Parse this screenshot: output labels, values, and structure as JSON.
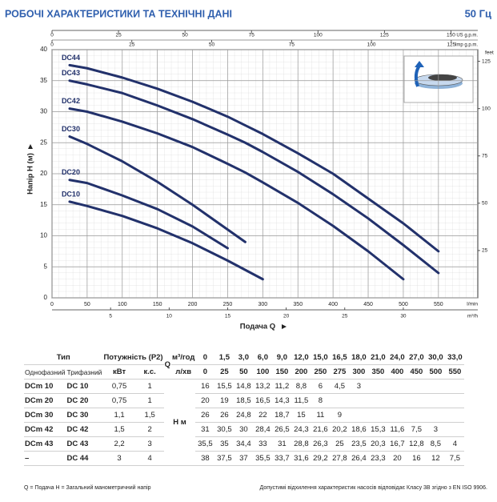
{
  "header": {
    "title": "РОБОЧІ ХАРАКТЕРИСТИКИ ТА ТЕХНІЧНІ ДАНІ",
    "frequency": "50 Гц"
  },
  "chart_data": {
    "type": "line",
    "x_label": "Подача Q",
    "y_label": "Напір H (м)",
    "x_unit": "l/min",
    "xlim": [
      0,
      606
    ],
    "xticks": [
      0,
      50,
      100,
      150,
      200,
      250,
      300,
      350,
      400,
      450,
      500,
      550
    ],
    "x2_label": "m³/h",
    "x2lim": [
      0,
      36.36
    ],
    "x2ticks": [
      5,
      10,
      15,
      20,
      25,
      30
    ],
    "x3_label": "US g.p.m.",
    "x3lim": [
      0,
      160.1
    ],
    "x3ticks": [
      0,
      25,
      50,
      75,
      100,
      125,
      150
    ],
    "x4_label": "Imp g.p.m.",
    "x4lim": [
      0,
      133.3
    ],
    "x4ticks": [
      0,
      25,
      50,
      75,
      100,
      125
    ],
    "ylim": [
      0,
      40
    ],
    "yticks": [
      0,
      5,
      10,
      15,
      20,
      25,
      30,
      35,
      40
    ],
    "y2_label": "feet",
    "y2lim": [
      0,
      131.2
    ],
    "y2ticks": [
      25,
      50,
      75,
      100,
      125
    ],
    "grid": true,
    "x": [
      25,
      50,
      100,
      150,
      200,
      250,
      275,
      300,
      350,
      400,
      450,
      500,
      550
    ],
    "series": [
      {
        "name": "DC44",
        "color": "#22316b",
        "values": [
          37.5,
          37,
          35.5,
          33.7,
          31.6,
          29.2,
          27.8,
          26.4,
          23.3,
          20,
          16,
          12,
          7.5
        ]
      },
      {
        "name": "DC43",
        "color": "#22316b",
        "values": [
          35,
          34.4,
          33,
          31,
          28.8,
          26.3,
          25,
          23.5,
          20.3,
          16.7,
          12.8,
          8.5,
          4
        ]
      },
      {
        "name": "DC42",
        "color": "#22316b",
        "values": [
          30.5,
          30,
          28.4,
          26.5,
          24.3,
          21.6,
          20.2,
          18.6,
          15.3,
          11.6,
          7.5,
          3,
          null
        ]
      },
      {
        "name": "DC30",
        "color": "#22316b",
        "values": [
          26,
          24.8,
          22,
          18.7,
          15,
          11,
          9,
          null,
          null,
          null,
          null,
          null,
          null
        ]
      },
      {
        "name": "DC20",
        "color": "#22316b",
        "values": [
          19,
          18.5,
          16.5,
          14.3,
          11.5,
          8,
          null,
          null,
          null,
          null,
          null,
          null,
          null
        ]
      },
      {
        "name": "DC10",
        "color": "#22316b",
        "values": [
          15.5,
          14.8,
          13.2,
          11.2,
          8.8,
          6,
          4.5,
          3,
          null,
          null,
          null,
          null,
          null
        ]
      }
    ]
  },
  "table": {
    "header": {
      "type": "Тип",
      "power": "Потужність (P2)",
      "q": "Q",
      "q_unit_m3h": "м³/год",
      "q_unit_lmin": "л/хв",
      "single_phase": "Однофазний",
      "three_phase": "Трифазний",
      "kw": "кВт",
      "hp": "к.с.",
      "h": "H м"
    },
    "q_m3h": [
      "0",
      "1,5",
      "3,0",
      "6,0",
      "9,0",
      "12,0",
      "15,0",
      "16,5",
      "18,0",
      "21,0",
      "24,0",
      "27,0",
      "30,0",
      "33,0"
    ],
    "q_lmin": [
      0,
      25,
      50,
      100,
      150,
      200,
      250,
      275,
      300,
      350,
      400,
      450,
      500,
      550
    ],
    "rows": [
      {
        "single": "DCm 10",
        "three": "DC 10",
        "kw": "0,75",
        "hp": "1",
        "h": [
          "16",
          "15,5",
          "14,8",
          "13,2",
          "11,2",
          "8,8",
          "6",
          "4,5",
          "3"
        ]
      },
      {
        "single": "DCm 20",
        "three": "DC 20",
        "kw": "0,75",
        "hp": "1",
        "h": [
          "20",
          "19",
          "18,5",
          "16,5",
          "14,3",
          "11,5",
          "8"
        ]
      },
      {
        "single": "DCm 30",
        "three": "DC 30",
        "kw": "1,1",
        "hp": "1,5",
        "h": [
          "26",
          "26",
          "24,8",
          "22",
          "18,7",
          "15",
          "11",
          "9"
        ]
      },
      {
        "single": "DCm 42",
        "three": "DC 42",
        "kw": "1,5",
        "hp": "2",
        "h": [
          "31",
          "30,5",
          "30",
          "28,4",
          "26,5",
          "24,3",
          "21,6",
          "20,2",
          "18,6",
          "15,3",
          "11,6",
          "7,5",
          "3"
        ]
      },
      {
        "single": "DCm 43",
        "three": "DC 43",
        "kw": "2,2",
        "hp": "3",
        "h": [
          "35,5",
          "35",
          "34,4",
          "33",
          "31",
          "28,8",
          "26,3",
          "25",
          "23,5",
          "20,3",
          "16,7",
          "12,8",
          "8,5",
          "4"
        ]
      },
      {
        "single": "–",
        "three": "DC 44",
        "kw": "3",
        "hp": "4",
        "h": [
          "38",
          "37,5",
          "37",
          "35,5",
          "33,7",
          "31,6",
          "29,2",
          "27,8",
          "26,4",
          "23,3",
          "20",
          "16",
          "12",
          "7,5"
        ]
      }
    ]
  },
  "footer": {
    "legend": "Q = Подача  H = Загальний манометричний напір",
    "note": "Допустимі відхилення характеристик насосів відповідає Класу 3В згідно з EN ISO 9906."
  }
}
